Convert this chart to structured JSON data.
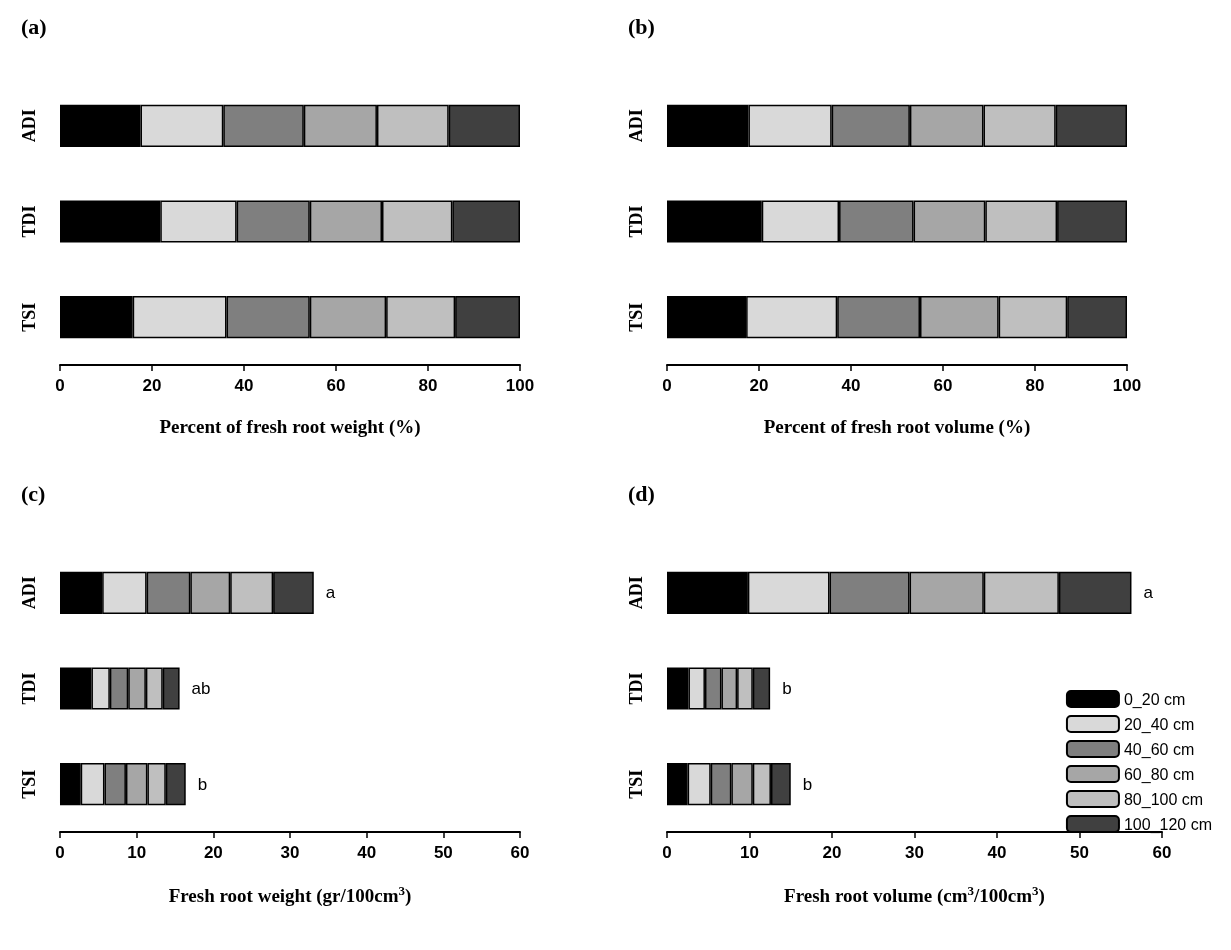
{
  "chart_data": [
    {
      "type": "bar",
      "title": "(a)",
      "orientation": "horizontal",
      "stacked": true,
      "categories": [
        "ADI",
        "TDI",
        "TSI"
      ],
      "xlabel": "Percent of fresh root weight (%)",
      "xlim": [
        0,
        100
      ],
      "xticks": [
        0,
        20,
        40,
        60,
        80,
        100
      ],
      "grid": false,
      "legend": false,
      "series": [
        {
          "color": "#000000",
          "values": [
            17.5,
            21.8,
            15.8
          ]
        },
        {
          "color": "#d9d9d9",
          "values": [
            18.0,
            16.6,
            20.4
          ]
        },
        {
          "color": "#7f7f7f",
          "values": [
            17.5,
            15.9,
            18.1
          ]
        },
        {
          "color": "#a6a6a6",
          "values": [
            15.9,
            15.7,
            16.6
          ]
        },
        {
          "color": "#bfbfbf",
          "values": [
            15.6,
            15.3,
            15.0
          ]
        },
        {
          "color": "#404040",
          "values": [
            15.5,
            14.7,
            14.1
          ]
        }
      ]
    },
    {
      "type": "bar",
      "title": "(b)",
      "orientation": "horizontal",
      "stacked": true,
      "categories": [
        "ADI",
        "TDI",
        "TSI"
      ],
      "xlabel": "Percent of fresh root volume (%)",
      "xlim": [
        0,
        100
      ],
      "xticks": [
        0,
        20,
        40,
        60,
        80,
        100
      ],
      "grid": false,
      "legend": false,
      "series": [
        {
          "color": "#000000",
          "values": [
            17.7,
            20.6,
            17.2
          ]
        },
        {
          "color": "#d9d9d9",
          "values": [
            18.1,
            16.8,
            19.8
          ]
        },
        {
          "color": "#7f7f7f",
          "values": [
            17.0,
            16.2,
            18.0
          ]
        },
        {
          "color": "#a6a6a6",
          "values": [
            16.0,
            15.6,
            17.1
          ]
        },
        {
          "color": "#bfbfbf",
          "values": [
            15.7,
            15.6,
            14.9
          ]
        },
        {
          "color": "#404040",
          "values": [
            15.5,
            15.2,
            13.0
          ]
        }
      ]
    },
    {
      "type": "bar",
      "title": "(c)",
      "orientation": "horizontal",
      "stacked": true,
      "categories": [
        "ADI",
        "TDI",
        "TSI"
      ],
      "xlabel": "Fresh root weight (gr/100cm$^{3}$)",
      "xlim": [
        0,
        60
      ],
      "xticks": [
        0,
        10,
        20,
        30,
        40,
        50,
        60
      ],
      "grid": false,
      "legend": false,
      "annotations": [
        {
          "text": "a",
          "x": 33.1,
          "y": "ADI"
        },
        {
          "text": "ab",
          "x": 15.6,
          "y": "TDI"
        },
        {
          "text": "b",
          "x": 16.4,
          "y": "TSI"
        }
      ],
      "series": [
        {
          "color": "#000000",
          "values": [
            5.5,
            4.1,
            2.7
          ]
        },
        {
          "color": "#d9d9d9",
          "values": [
            5.8,
            2.4,
            3.1
          ]
        },
        {
          "color": "#7f7f7f",
          "values": [
            5.7,
            2.4,
            2.8
          ]
        },
        {
          "color": "#a6a6a6",
          "values": [
            5.2,
            2.3,
            2.8
          ]
        },
        {
          "color": "#bfbfbf",
          "values": [
            5.6,
            2.2,
            2.4
          ]
        },
        {
          "color": "#404040",
          "values": [
            5.3,
            2.2,
            2.6
          ]
        }
      ]
    },
    {
      "type": "bar",
      "title": "(d)",
      "orientation": "horizontal",
      "stacked": true,
      "categories": [
        "ADI",
        "TDI",
        "TSI"
      ],
      "xlabel": "Fresh root volume (cm$^{3}$/100cm$^{3}$)",
      "xlim": [
        0,
        60
      ],
      "xticks": [
        0,
        10,
        20,
        30,
        40,
        50,
        60
      ],
      "grid": false,
      "legend": "right",
      "annotations": [
        {
          "text": "a",
          "x": 56.3,
          "y": "ADI"
        },
        {
          "text": "b",
          "x": 12.5,
          "y": "TDI"
        },
        {
          "text": "b",
          "x": 15.0,
          "y": "TSI"
        }
      ],
      "series": [
        {
          "name": "0_20 cm",
          "color": "#000000",
          "values": [
            9.8,
            2.6,
            2.5
          ]
        },
        {
          "name": "20_40 cm",
          "color": "#d9d9d9",
          "values": [
            9.9,
            2.0,
            2.8
          ]
        },
        {
          "name": "40_60 cm",
          "color": "#7f7f7f",
          "values": [
            9.7,
            2.0,
            2.5
          ]
        },
        {
          "name": "60_80 cm",
          "color": "#a6a6a6",
          "values": [
            9.0,
            1.9,
            2.6
          ]
        },
        {
          "name": "80_100 cm",
          "color": "#bfbfbf",
          "values": [
            9.1,
            1.9,
            2.2
          ]
        },
        {
          "name": "100_120 cm",
          "color": "#404040",
          "values": [
            8.8,
            2.1,
            2.4
          ]
        }
      ]
    }
  ]
}
